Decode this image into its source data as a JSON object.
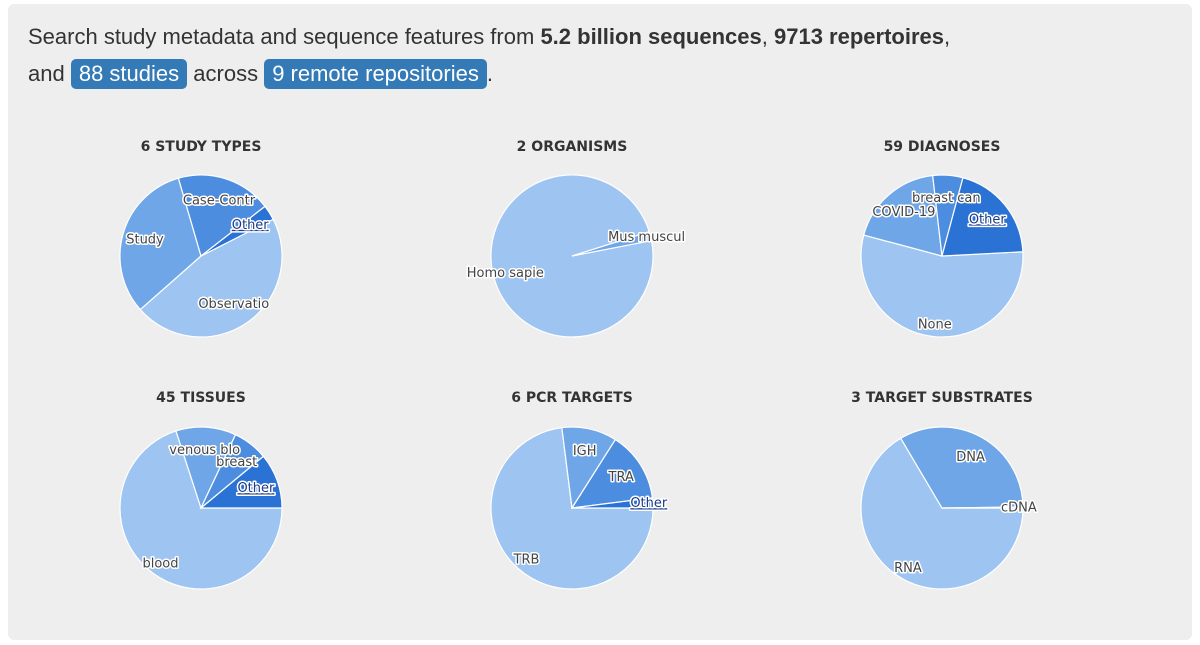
{
  "intro": {
    "prefix": "Search study metadata and sequence features from",
    "sequences": "5.2 billion sequences",
    "comma": ",",
    "repertoires": "9713 repertoires",
    "and": "and",
    "studies_button": "88 studies",
    "across": "across",
    "repos_button": "9 remote repositories",
    "period": "."
  },
  "colors": {
    "panel_bg": "#eeeeee",
    "pill": "#337ab7",
    "slice_1": "#9ec4f2",
    "slice_2": "#6ea6e8",
    "slice_3": "#4d8de0",
    "slice_4": "#2a72d4",
    "slice_border": "#ffffff"
  },
  "chart_data": [
    {
      "type": "pie",
      "title": "6 STUDY TYPES",
      "series": [
        {
          "label": "Observatio",
          "value": 46,
          "link": false
        },
        {
          "label": "Study",
          "value": 32,
          "link": false
        },
        {
          "label": "Case-Contr",
          "value": 19,
          "link": false
        },
        {
          "label": "Other",
          "value": 3,
          "link": true
        }
      ]
    },
    {
      "type": "pie",
      "title": "2 ORGANISMS",
      "series": [
        {
          "label": "Homo sapie",
          "value": 98.2,
          "link": false
        },
        {
          "label": "Mus muscul",
          "value": 1.8,
          "link": false
        }
      ]
    },
    {
      "type": "pie",
      "title": "59 DIAGNOSES",
      "series": [
        {
          "label": "None",
          "value": 55,
          "link": false
        },
        {
          "label": "COVID-19",
          "value": 19,
          "link": false
        },
        {
          "label": "breast can",
          "value": 6,
          "link": false
        },
        {
          "label": "Other",
          "value": 20,
          "link": true
        }
      ]
    },
    {
      "type": "pie",
      "title": "45 TISSUES",
      "series": [
        {
          "label": "blood",
          "value": 70,
          "link": false
        },
        {
          "label": "venous blo",
          "value": 12,
          "link": false
        },
        {
          "label": "breast",
          "value": 7,
          "link": false
        },
        {
          "label": "Other",
          "value": 11,
          "link": true
        }
      ]
    },
    {
      "type": "pie",
      "title": "6 PCR TARGETS",
      "series": [
        {
          "label": "TRB",
          "value": 73,
          "link": false
        },
        {
          "label": "IGH",
          "value": 11,
          "link": false
        },
        {
          "label": "TRA",
          "value": 14,
          "link": false
        },
        {
          "label": "Other",
          "value": 2,
          "link": true
        }
      ]
    },
    {
      "type": "pie",
      "title": "3 TARGET SUBSTRATES",
      "series": [
        {
          "label": "RNA",
          "value": 66.5,
          "link": false
        },
        {
          "label": "DNA",
          "value": 33.3,
          "link": false
        },
        {
          "label": "cDNA",
          "value": 0.2,
          "link": false
        }
      ]
    }
  ]
}
